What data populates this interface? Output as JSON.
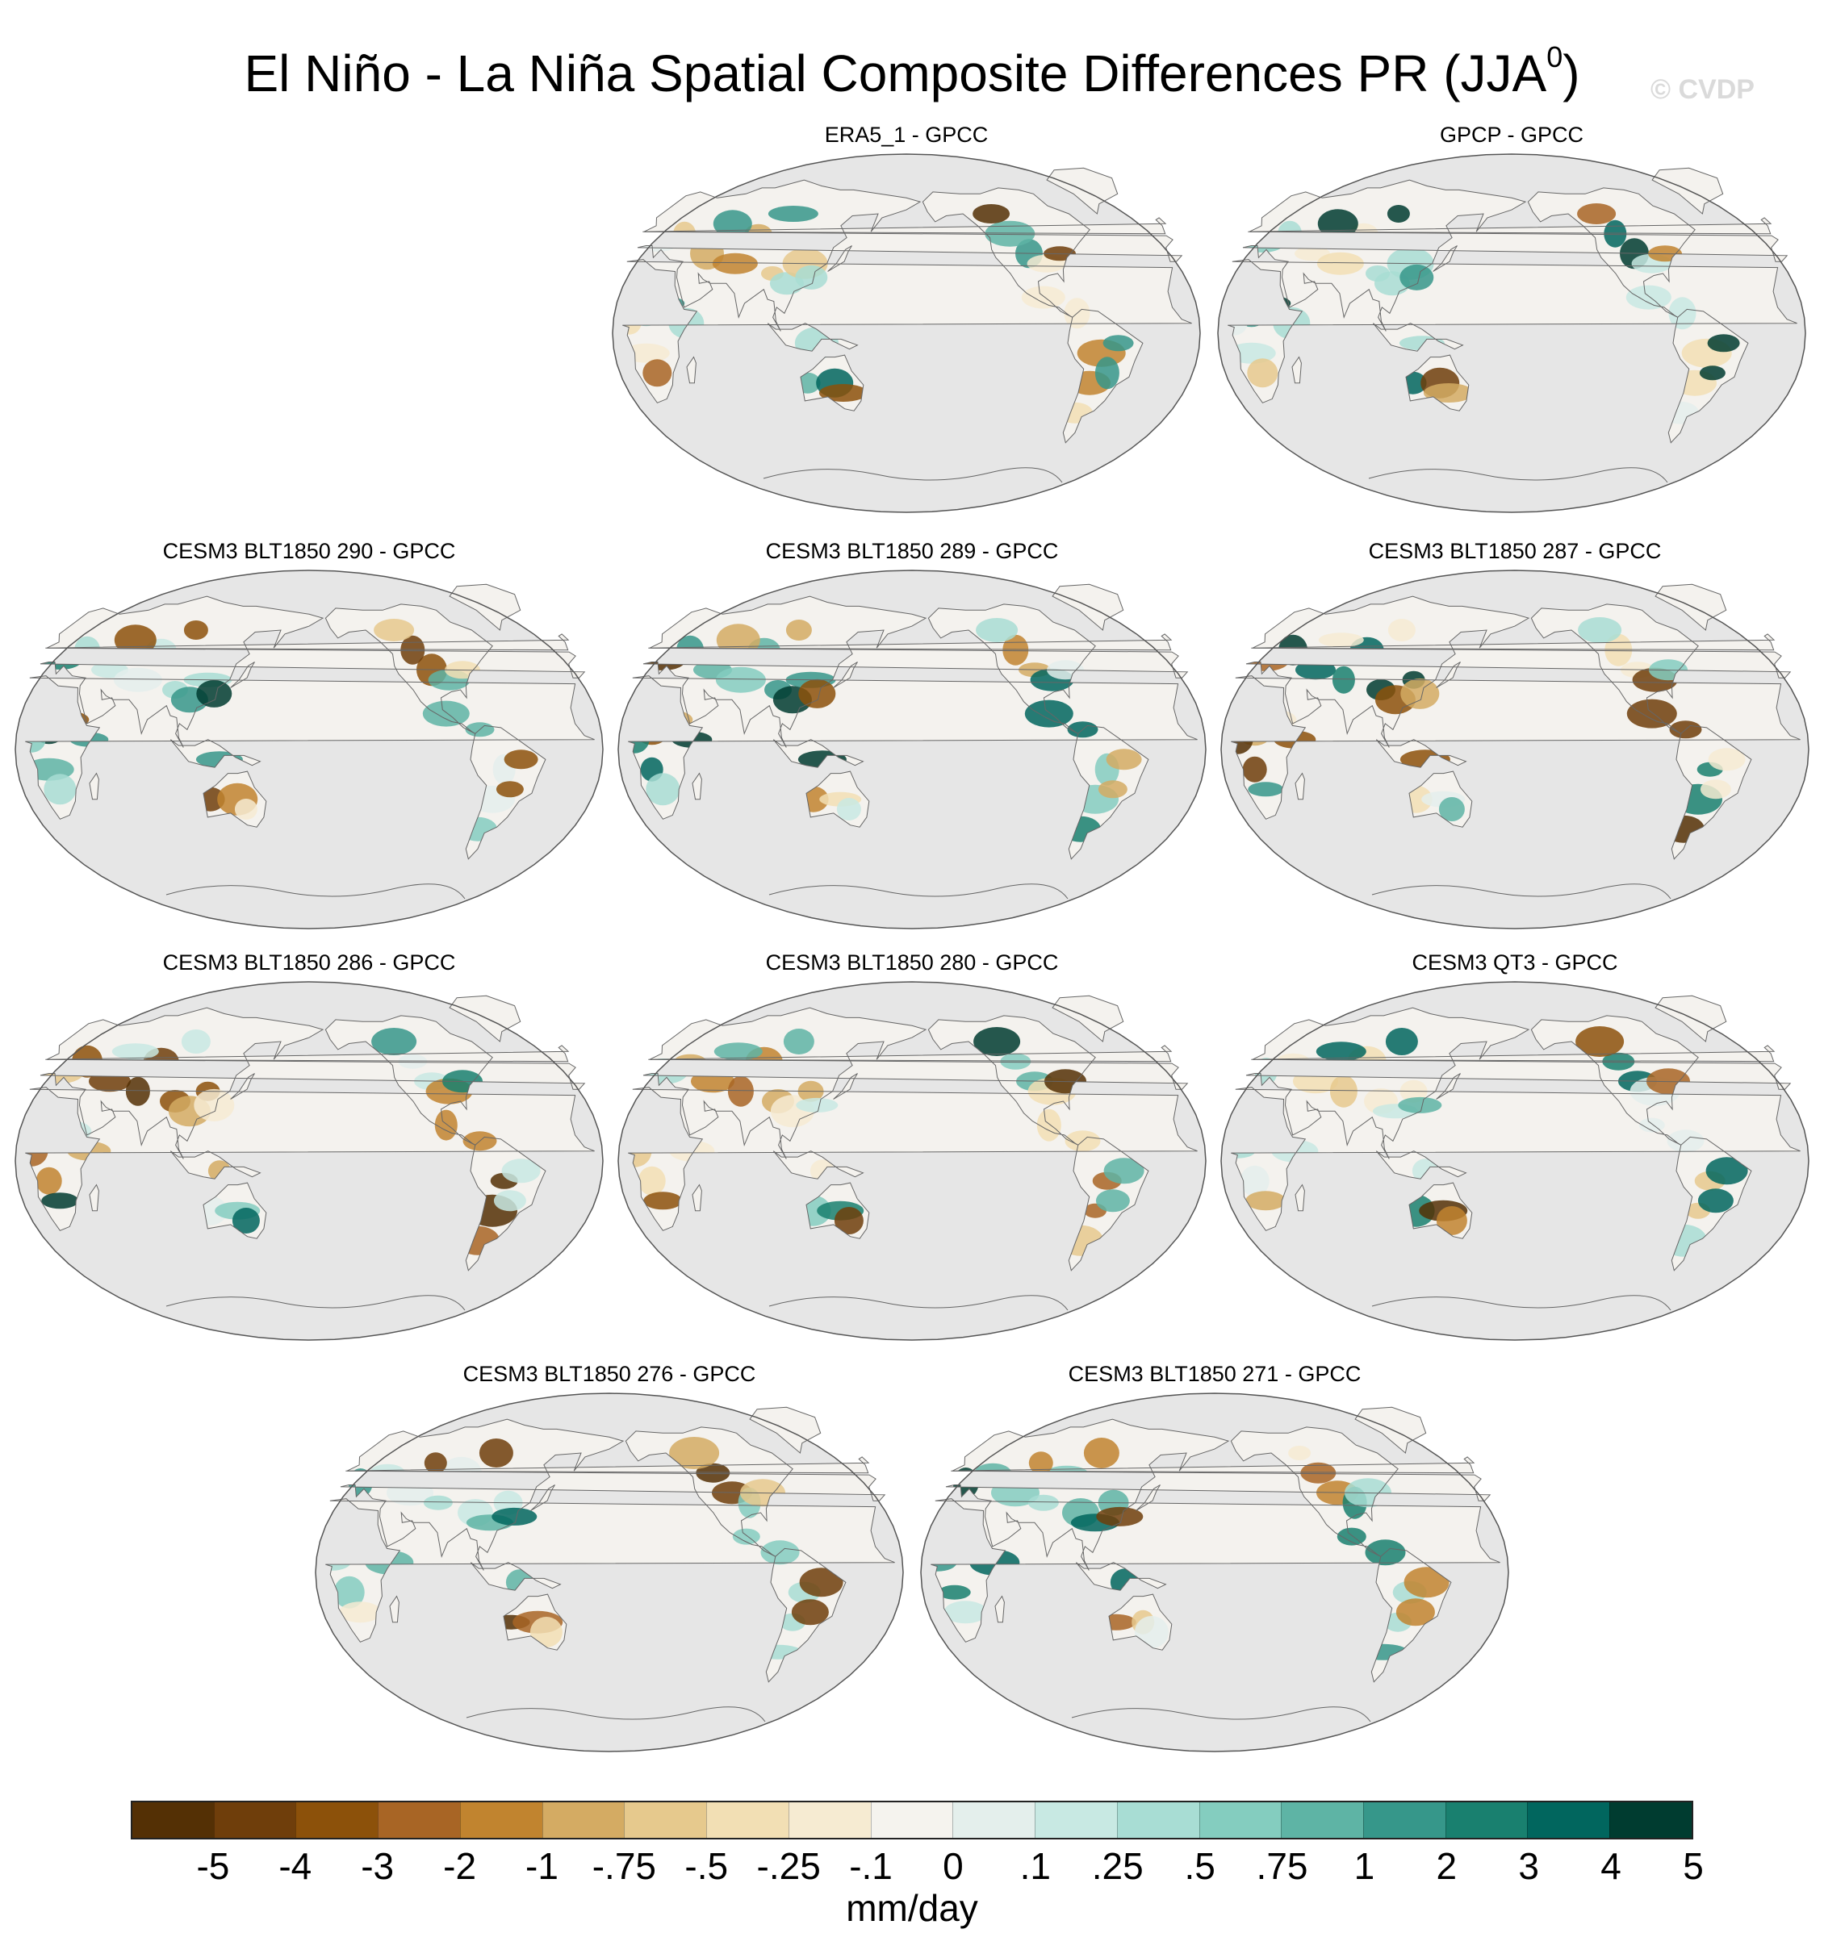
{
  "title": {
    "main": "El Niño - La Niña Spatial Composite Differences PR (JJA",
    "superscript": "0",
    "close": ")"
  },
  "watermark": "© CVDP",
  "panels": [
    {
      "title": "ERA5_1 - GPCC"
    },
    {
      "title": "GPCP - GPCC"
    },
    {
      "title": "CESM3 BLT1850 290 - GPCC"
    },
    {
      "title": "CESM3 BLT1850 289 - GPCC"
    },
    {
      "title": "CESM3 BLT1850 287 - GPCC"
    },
    {
      "title": "CESM3 BLT1850 286 - GPCC"
    },
    {
      "title": "CESM3 BLT1850 280 - GPCC"
    },
    {
      "title": "CESM3 QT3 - GPCC"
    },
    {
      "title": "CESM3 BLT1850 276 - GPCC"
    },
    {
      "title": "CESM3 BLT1850 271 - GPCC"
    }
  ],
  "colorbar": {
    "units": "mm/day",
    "colors": [
      "#543005",
      "#6f3e0b",
      "#8c510a",
      "#a86525",
      "#c1842f",
      "#d4ab63",
      "#e6c98d",
      "#f2dfb4",
      "#f6ebd2",
      "#f5f3ee",
      "#e4efec",
      "#c8e9e3",
      "#a8ddd4",
      "#84cdbf",
      "#5eb4a5",
      "#36978a",
      "#19806f",
      "#01665e",
      "#003c30"
    ],
    "tick_labels": [
      "-5",
      "-4",
      "-3",
      "-2",
      "-1",
      "-.75",
      "-.5",
      "-.25",
      "-.1",
      "0",
      ".1",
      ".25",
      ".5",
      ".75",
      "1",
      "2",
      "3",
      "4",
      "5"
    ]
  }
}
